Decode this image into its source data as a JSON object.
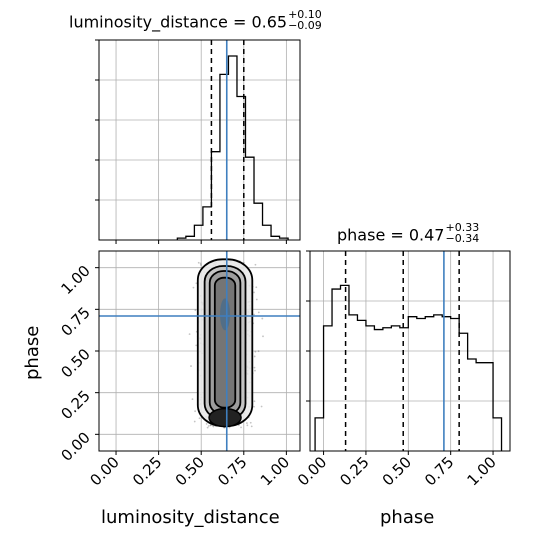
{
  "chart_data": {
    "type": "corner",
    "parameters": [
      "luminosity_distance",
      "phase"
    ],
    "truth_color": "#3f7fbf",
    "titles": [
      {
        "label": "luminosity_distance = ",
        "median": "0.65",
        "plus": "+0.10",
        "minus": "−0.09"
      },
      {
        "label": "phase = ",
        "median": "0.47",
        "plus": "+0.33",
        "minus": "−0.34"
      }
    ],
    "axis_labels": {
      "x_bottom_left": "luminosity_distance",
      "x_bottom_right": "phase",
      "y_left": "phase"
    },
    "tick_labels": [
      "0.00",
      "0.25",
      "0.50",
      "0.75",
      "1.00"
    ],
    "panels": {
      "hist_distance": {
        "xlim": [
          -0.1,
          1.08
        ],
        "bins": [
          0.36,
          0.41,
          0.46,
          0.51,
          0.56,
          0.61,
          0.66,
          0.71,
          0.76,
          0.81,
          0.86,
          0.91,
          0.96,
          1.01
        ],
        "counts": [
          0.01,
          0.02,
          0.08,
          0.18,
          0.48,
          0.9,
          1.0,
          0.78,
          0.45,
          0.2,
          0.08,
          0.02,
          0.01
        ],
        "quantiles": [
          0.56,
          0.65,
          0.75
        ],
        "truth": 0.65
      },
      "hist_phase": {
        "xlim": [
          -0.08,
          1.1
        ],
        "bins": [
          -0.05,
          0.0,
          0.05,
          0.1,
          0.15,
          0.2,
          0.25,
          0.3,
          0.35,
          0.4,
          0.45,
          0.5,
          0.55,
          0.6,
          0.65,
          0.7,
          0.75,
          0.8,
          0.85,
          0.9,
          0.95,
          1.0,
          1.05
        ],
        "counts": [
          0.18,
          0.68,
          0.88,
          0.9,
          0.74,
          0.71,
          0.68,
          0.66,
          0.67,
          0.68,
          0.67,
          0.73,
          0.72,
          0.73,
          0.74,
          0.73,
          0.72,
          0.64,
          0.5,
          0.48,
          0.48,
          0.18
        ],
        "quantiles": [
          0.13,
          0.47,
          0.8
        ],
        "truth": 0.71
      },
      "joint": {
        "xlim": [
          -0.1,
          1.08
        ],
        "ylim": [
          -0.1,
          1.1
        ],
        "truth_x": 0.65,
        "truth_y": 0.71,
        "contours": [
          {
            "cx": 0.64,
            "cy": 0.55,
            "rx": 0.16,
            "ry": 0.5
          },
          {
            "cx": 0.64,
            "cy": 0.55,
            "rx": 0.12,
            "ry": 0.46
          },
          {
            "cx": 0.64,
            "cy": 0.55,
            "rx": 0.09,
            "ry": 0.43
          },
          {
            "cx": 0.64,
            "cy": 0.55,
            "rx": 0.06,
            "ry": 0.39
          }
        ]
      }
    }
  }
}
